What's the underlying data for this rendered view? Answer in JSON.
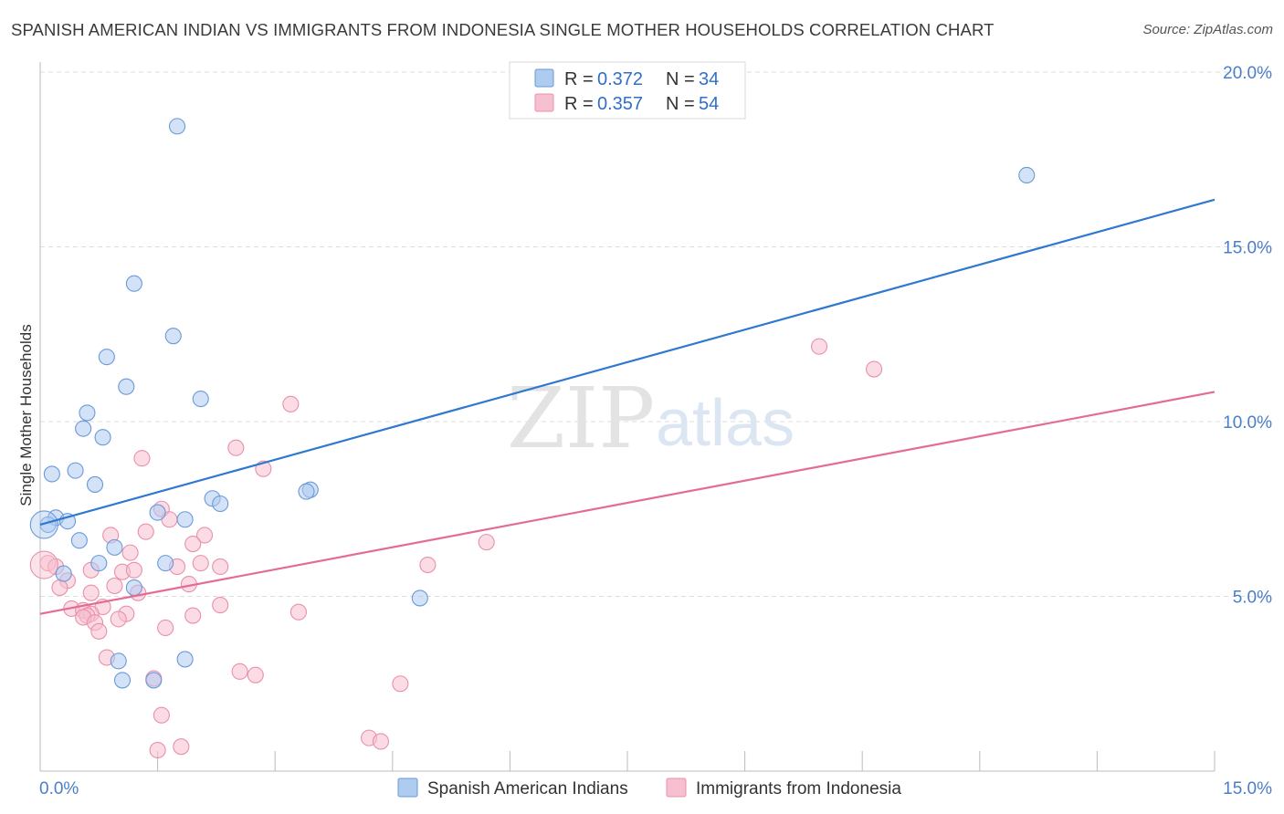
{
  "title": "SPANISH AMERICAN INDIAN VS IMMIGRANTS FROM INDONESIA SINGLE MOTHER HOUSEHOLDS CORRELATION CHART",
  "source": "Source: ZipAtlas.com",
  "watermark": {
    "zip": "ZIP",
    "atlas": "atlas"
  },
  "colors": {
    "blue_fill": "#aecbf0",
    "blue_stroke": "#6a9ad8",
    "blue_line": "#2f78d0",
    "pink_fill": "#f7c0d0",
    "pink_stroke": "#e890ab",
    "pink_line": "#e46b94",
    "tick_text": "#4a7ec9",
    "grid": "#dddddd",
    "value_text": "#2f6fc9"
  },
  "legend_top": [
    {
      "r_label": "R = ",
      "r_value": "0.372",
      "n_label": "N = ",
      "n_value": "34"
    },
    {
      "r_label": "R = ",
      "r_value": "0.357",
      "n_label": "N = ",
      "n_value": "54"
    }
  ],
  "chart_data": {
    "type": "scatter",
    "title": "SPANISH AMERICAN INDIAN VS IMMIGRANTS FROM INDONESIA SINGLE MOTHER HOUSEHOLDS CORRELATION CHART",
    "xlabel": "",
    "ylabel": "Single Mother Households",
    "xlim": [
      0,
      15
    ],
    "ylim": [
      0,
      20
    ],
    "x_tick_labels": [
      "0.0%",
      "15.0%"
    ],
    "y_ticks": [
      5,
      10,
      15,
      20
    ],
    "y_tick_labels": [
      "5.0%",
      "10.0%",
      "15.0%",
      "20.0%"
    ],
    "grid": true,
    "legend_position": "top-center",
    "series": [
      {
        "name": "Spanish American Indians",
        "r": 0.372,
        "n": 34,
        "trend": {
          "x": [
            0,
            15
          ],
          "y": [
            7.05,
            16.35
          ]
        },
        "points": [
          [
            1.75,
            18.45
          ],
          [
            12.6,
            17.05
          ],
          [
            1.2,
            13.95
          ],
          [
            1.7,
            12.45
          ],
          [
            0.85,
            11.85
          ],
          [
            1.1,
            11.0
          ],
          [
            2.05,
            10.65
          ],
          [
            0.6,
            10.25
          ],
          [
            0.55,
            9.8
          ],
          [
            0.8,
            9.55
          ],
          [
            0.15,
            8.5
          ],
          [
            0.45,
            8.6
          ],
          [
            0.7,
            8.2
          ],
          [
            3.45,
            8.05
          ],
          [
            3.4,
            8.0
          ],
          [
            2.2,
            7.8
          ],
          [
            2.3,
            7.65
          ],
          [
            0.2,
            7.25
          ],
          [
            1.5,
            7.4
          ],
          [
            1.85,
            7.2
          ],
          [
            0.35,
            7.15
          ],
          [
            0.1,
            7.05
          ],
          [
            0.5,
            6.6
          ],
          [
            0.95,
            6.4
          ],
          [
            0.75,
            5.95
          ],
          [
            1.6,
            5.95
          ],
          [
            0.3,
            5.65
          ],
          [
            1.2,
            5.25
          ],
          [
            4.85,
            4.95
          ],
          [
            1.85,
            3.2
          ],
          [
            1.0,
            3.15
          ],
          [
            1.05,
            2.6
          ],
          [
            1.45,
            2.6
          ],
          [
            0.05,
            7.05
          ]
        ]
      },
      {
        "name": "Immigrants from Indonesia",
        "r": 0.357,
        "n": 54,
        "trend": {
          "x": [
            0,
            15
          ],
          "y": [
            4.5,
            10.85
          ]
        },
        "points": [
          [
            9.95,
            12.15
          ],
          [
            10.65,
            11.5
          ],
          [
            3.2,
            10.5
          ],
          [
            2.5,
            9.25
          ],
          [
            1.3,
            8.95
          ],
          [
            2.85,
            8.65
          ],
          [
            1.55,
            7.5
          ],
          [
            1.65,
            7.2
          ],
          [
            1.35,
            6.85
          ],
          [
            0.9,
            6.75
          ],
          [
            2.1,
            6.75
          ],
          [
            5.7,
            6.55
          ],
          [
            1.95,
            6.5
          ],
          [
            1.15,
            6.25
          ],
          [
            0.1,
            5.95
          ],
          [
            0.2,
            5.85
          ],
          [
            2.05,
            5.95
          ],
          [
            2.3,
            5.85
          ],
          [
            1.75,
            5.85
          ],
          [
            4.95,
            5.9
          ],
          [
            0.65,
            5.75
          ],
          [
            1.05,
            5.7
          ],
          [
            1.2,
            5.75
          ],
          [
            0.35,
            5.45
          ],
          [
            1.9,
            5.35
          ],
          [
            0.25,
            5.25
          ],
          [
            0.95,
            5.3
          ],
          [
            0.65,
            5.1
          ],
          [
            1.25,
            5.1
          ],
          [
            2.3,
            4.75
          ],
          [
            0.8,
            4.7
          ],
          [
            0.4,
            4.65
          ],
          [
            0.55,
            4.6
          ],
          [
            0.65,
            4.5
          ],
          [
            1.1,
            4.5
          ],
          [
            3.3,
            4.55
          ],
          [
            0.6,
            4.45
          ],
          [
            0.55,
            4.4
          ],
          [
            1.95,
            4.45
          ],
          [
            0.7,
            4.25
          ],
          [
            1.0,
            4.35
          ],
          [
            1.6,
            4.1
          ],
          [
            0.75,
            4.0
          ],
          [
            0.85,
            3.25
          ],
          [
            2.55,
            2.85
          ],
          [
            2.75,
            2.75
          ],
          [
            1.45,
            2.65
          ],
          [
            4.6,
            2.5
          ],
          [
            1.55,
            1.6
          ],
          [
            4.2,
            0.95
          ],
          [
            4.35,
            0.85
          ],
          [
            1.8,
            0.7
          ],
          [
            1.5,
            0.6
          ],
          [
            0.05,
            5.9
          ]
        ]
      }
    ]
  }
}
